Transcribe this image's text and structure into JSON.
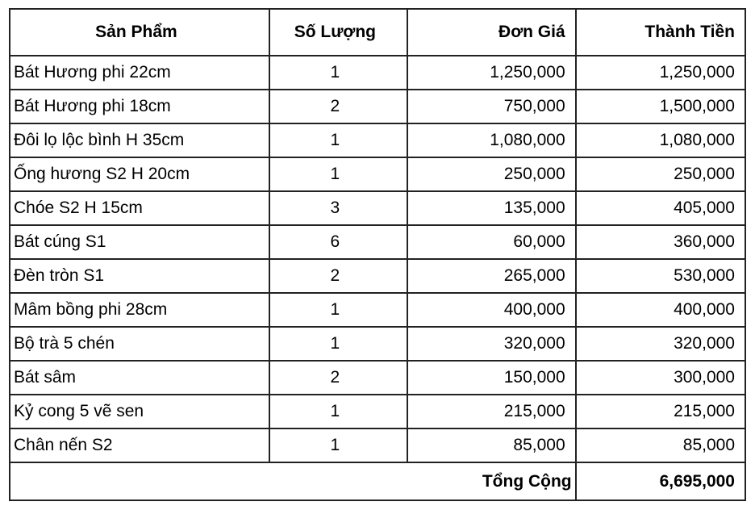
{
  "table": {
    "headers": [
      "Sản Phẩm",
      "Số Lượng",
      "Đơn Giá",
      "Thành Tiền"
    ],
    "rows": [
      [
        "Bát Hương phi 22cm",
        "1",
        "1,250,000",
        "1,250,000"
      ],
      [
        "Bát Hương phi 18cm",
        "2",
        "750,000",
        "1,500,000"
      ],
      [
        "Đôi lọ lộc bình H 35cm",
        "1",
        "1,080,000",
        "1,080,000"
      ],
      [
        "Ống hương S2 H 20cm",
        "1",
        "250,000",
        "250,000"
      ],
      [
        "Chóe S2 H 15cm",
        "3",
        "135,000",
        "405,000"
      ],
      [
        "Bát cúng S1",
        "6",
        "60,000",
        "360,000"
      ],
      [
        "Đèn tròn S1",
        "2",
        "265,000",
        "530,000"
      ],
      [
        "Mâm bồng phi 28cm",
        "1",
        "400,000",
        "400,000"
      ],
      [
        "Bộ trà 5 chén",
        "1",
        "320,000",
        "320,000"
      ],
      [
        "Bát sâm",
        "2",
        "150,000",
        "300,000"
      ],
      [
        "Kỷ cong 5 vẽ sen",
        "1",
        "215,000",
        "215,000"
      ],
      [
        "Chân nến S2",
        "1",
        "85,000",
        "85,000"
      ]
    ],
    "total_label": "Tổng Cộng",
    "total_value": "6,695,000"
  }
}
